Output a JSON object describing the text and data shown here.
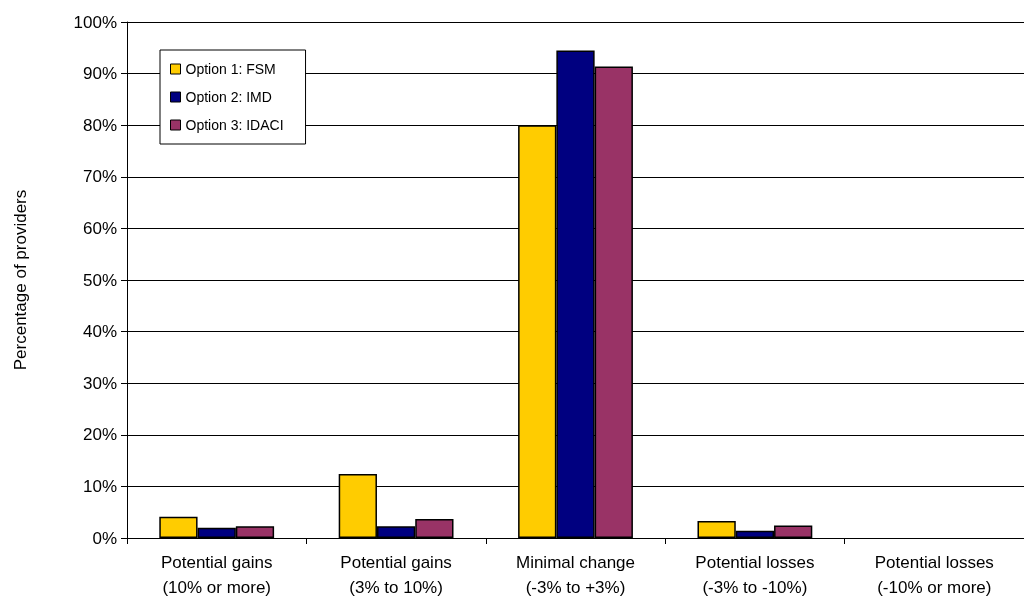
{
  "chart_data": {
    "type": "bar",
    "ylabel": "Percentage of providers",
    "categories": [
      "Potential gains\n(10% or more)",
      "Potential gains\n(3% to 10%)",
      "Minimal change\n(-3% to +3%)",
      "Potential losses\n(-3% to -10%)",
      "Potential losses\n(-10% or more)"
    ],
    "series": [
      {
        "name": "Option 1: FSM",
        "color": "#ffcc00",
        "values": [
          4.1,
          12.4,
          80.0,
          3.3,
          0
        ]
      },
      {
        "name": "Option 2: IMD",
        "color": "#000080",
        "values": [
          2.0,
          2.3,
          94.5,
          1.4,
          0
        ]
      },
      {
        "name": "Option 3: IDACI",
        "color": "#993366",
        "values": [
          2.3,
          3.7,
          91.4,
          2.4,
          0
        ]
      }
    ],
    "ylim": [
      0,
      100
    ],
    "yticks": [
      {
        "value": 0,
        "label": "0%"
      },
      {
        "value": 10,
        "label": "10%"
      },
      {
        "value": 20,
        "label": "20%"
      },
      {
        "value": 30,
        "label": "30%"
      },
      {
        "value": 40,
        "label": "40%"
      },
      {
        "value": 50,
        "label": "50%"
      },
      {
        "value": 60,
        "label": "60%"
      },
      {
        "value": 70,
        "label": "70%"
      },
      {
        "value": 80,
        "label": "80%"
      },
      {
        "value": 90,
        "label": "90%"
      },
      {
        "value": 100,
        "label": "100%"
      }
    ],
    "grid": "y",
    "legend": "top left"
  }
}
